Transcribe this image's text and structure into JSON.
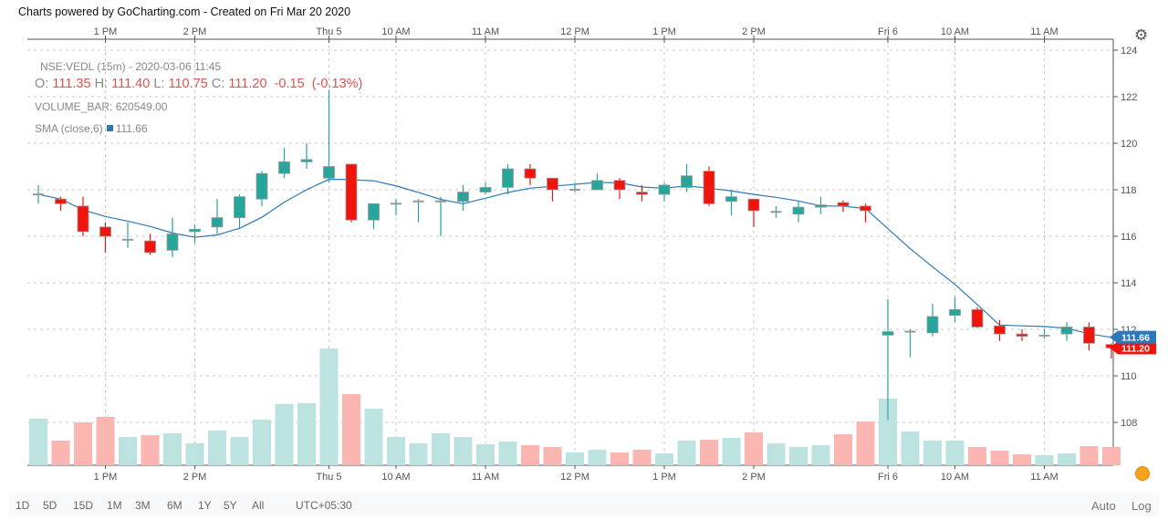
{
  "credit": "Charts powered by GoCharting.com - Created on Fri Mar 20 2020",
  "legend": {
    "symbol": "NSE:VEDL (15m) - 2020-03-06 11:45",
    "o_label": "O:",
    "o": "111.35",
    "h_label": "H:",
    "h": "111.40",
    "l_label": "L:",
    "l": "110.75",
    "c_label": "C:",
    "c": "111.20",
    "change": "-0.15",
    "change_pct": "(-0.13%)",
    "volume_label": "VOLUME_BAR:",
    "volume": "620549.00",
    "sma_label": "SMA (close,6)",
    "sma": "111.66"
  },
  "ranges": [
    "1D",
    "5D",
    "15D",
    "1M",
    "3M",
    "6M",
    "1Y",
    "5Y",
    "All"
  ],
  "timezone": "UTC+05:30",
  "scale_buttons": {
    "auto": "Auto",
    "log": "Log"
  },
  "icons": {
    "settings": "gear-icon",
    "status": "status-dot-icon"
  },
  "colors": {
    "up": "#26a69a",
    "down": "#f0140c",
    "up_vol": "#bde3e0",
    "down_vol": "#fbb6b2",
    "sma": "#2d78b8"
  },
  "chart_data": {
    "type": "candlestick",
    "title": "NSE:VEDL (15m)",
    "ylim": [
      106.2,
      124.6
    ],
    "y_ticks": [
      "108",
      "110",
      "112",
      "114",
      "116",
      "118",
      "120",
      "122",
      "124"
    ],
    "x_ticks": [
      {
        "index": 3,
        "label": "1 PM"
      },
      {
        "index": 7,
        "label": "2 PM"
      },
      {
        "index": 13,
        "label": "Thu 5"
      },
      {
        "index": 16,
        "label": "10 AM"
      },
      {
        "index": 20,
        "label": "11 AM"
      },
      {
        "index": 24,
        "label": "12 PM"
      },
      {
        "index": 28,
        "label": "1 PM"
      },
      {
        "index": 32,
        "label": "2 PM"
      },
      {
        "index": 38,
        "label": "Fri 6"
      },
      {
        "index": 41,
        "label": "10 AM"
      },
      {
        "index": 45,
        "label": "11 AM"
      }
    ],
    "ohlc": [
      [
        117.8,
        118.2,
        117.4,
        117.8
      ],
      [
        117.6,
        117.7,
        117.1,
        117.4
      ],
      [
        117.3,
        117.7,
        116.0,
        116.2
      ],
      [
        116.4,
        116.6,
        115.3,
        116.0
      ],
      [
        115.85,
        116.6,
        115.5,
        115.85
      ],
      [
        115.8,
        116.1,
        115.2,
        115.3
      ],
      [
        115.4,
        116.8,
        115.1,
        116.1
      ],
      [
        116.2,
        116.5,
        115.7,
        116.3
      ],
      [
        116.4,
        117.6,
        116.1,
        116.8
      ],
      [
        116.8,
        117.8,
        116.3,
        117.7
      ],
      [
        117.6,
        118.8,
        117.3,
        118.7
      ],
      [
        118.7,
        119.8,
        118.5,
        119.2
      ],
      [
        119.2,
        120.0,
        118.9,
        119.3
      ],
      [
        118.5,
        122.3,
        118.3,
        119.0
      ],
      [
        119.1,
        119.1,
        116.6,
        116.7
      ],
      [
        116.7,
        117.4,
        116.3,
        117.4
      ],
      [
        117.4,
        117.6,
        116.9,
        117.4
      ],
      [
        117.5,
        117.6,
        116.6,
        117.5
      ],
      [
        117.5,
        117.7,
        116.0,
        117.5
      ],
      [
        117.5,
        118.2,
        117.1,
        117.9
      ],
      [
        117.9,
        118.3,
        117.8,
        118.1
      ],
      [
        118.1,
        119.1,
        117.8,
        118.9
      ],
      [
        118.9,
        119.1,
        118.2,
        118.5
      ],
      [
        118.5,
        118.5,
        117.5,
        118.0
      ],
      [
        118.0,
        118.3,
        117.9,
        118.0
      ],
      [
        118.0,
        118.7,
        118.0,
        118.4
      ],
      [
        118.4,
        118.5,
        117.6,
        118.0
      ],
      [
        117.9,
        118.2,
        117.5,
        117.8
      ],
      [
        117.8,
        118.3,
        117.5,
        118.2
      ],
      [
        118.1,
        119.1,
        117.9,
        118.6
      ],
      [
        118.8,
        119.0,
        117.3,
        117.4
      ],
      [
        117.5,
        118.0,
        116.9,
        117.7
      ],
      [
        117.6,
        117.6,
        116.4,
        117.1
      ],
      [
        117.05,
        117.3,
        116.8,
        117.05
      ],
      [
        116.95,
        117.5,
        116.6,
        117.25
      ],
      [
        117.25,
        117.7,
        116.95,
        117.35
      ],
      [
        117.45,
        117.55,
        117.05,
        117.3
      ],
      [
        117.3,
        117.4,
        116.6,
        117.1
      ],
      [
        111.75,
        113.3,
        108.1,
        111.9
      ],
      [
        111.9,
        112.0,
        110.8,
        111.9
      ],
      [
        111.85,
        113.1,
        111.7,
        112.55
      ],
      [
        112.6,
        113.4,
        112.3,
        112.85
      ],
      [
        112.85,
        112.95,
        112.05,
        112.1
      ],
      [
        112.15,
        112.4,
        111.5,
        111.8
      ],
      [
        111.8,
        112.0,
        111.5,
        111.7
      ],
      [
        111.73,
        112.0,
        111.6,
        111.73
      ],
      [
        111.8,
        112.3,
        111.5,
        112.1
      ],
      [
        112.1,
        112.3,
        111.1,
        111.4
      ],
      [
        111.35,
        111.4,
        110.75,
        111.2
      ]
    ],
    "volume": [
      1581000,
      837000,
      1457000,
      1643000,
      961000,
      1023000,
      1085000,
      744000,
      1178000,
      961000,
      1550000,
      2077000,
      2108000,
      3968000,
      2418000,
      1922000,
      961000,
      744000,
      1085000,
      961000,
      713000,
      806000,
      682000,
      620000,
      434000,
      527000,
      434000,
      527000,
      403000,
      837000,
      868000,
      930000,
      1116000,
      744000,
      620000,
      682000,
      1054000,
      1488000,
      2263000,
      1147000,
      837000,
      837000,
      620000,
      496000,
      372000,
      341000,
      403000,
      651000,
      620549
    ],
    "sma_period": 6,
    "last_sma": "111.66",
    "last_close": "111.20"
  }
}
